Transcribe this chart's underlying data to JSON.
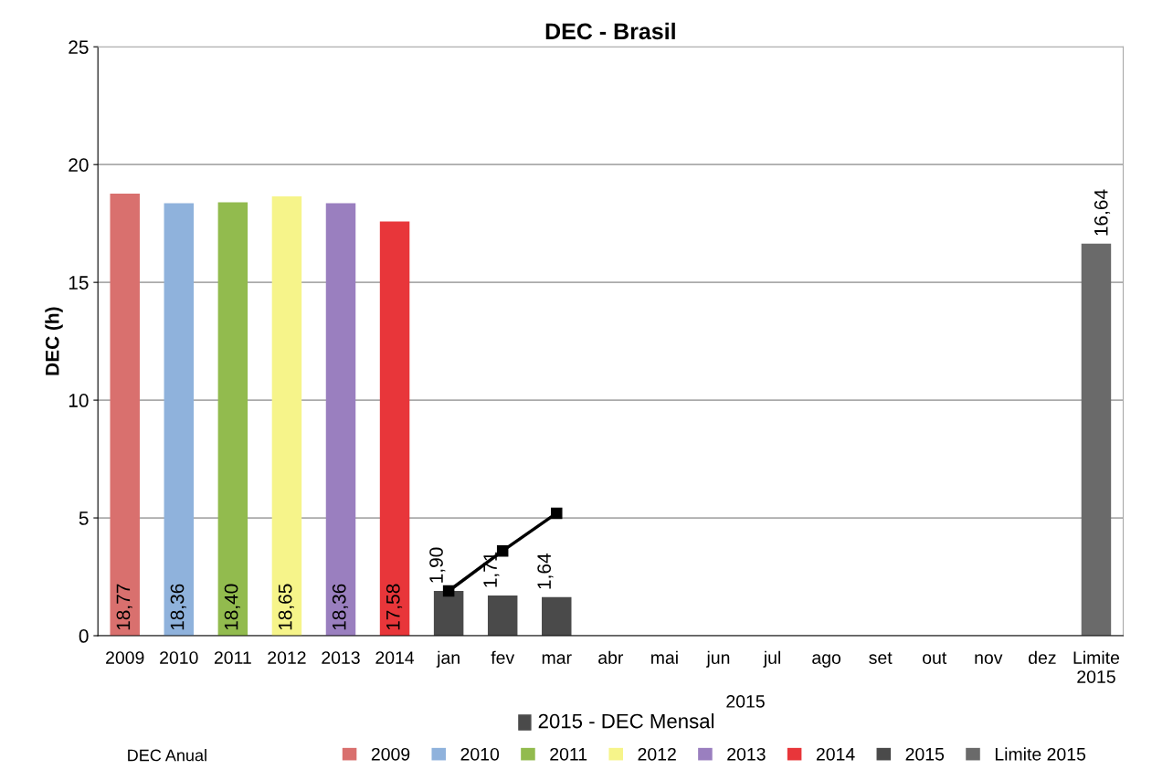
{
  "chart_data": {
    "type": "bar",
    "title": "DEC - Brasil",
    "ylabel": "DEC (h)",
    "categories": [
      "2009",
      "2010",
      "2011",
      "2012",
      "2013",
      "2014",
      "jan",
      "fev",
      "mar",
      "abr",
      "mai",
      "jun",
      "jul",
      "ago",
      "set",
      "out",
      "nov",
      "dez",
      "Limite 2015"
    ],
    "series": [
      {
        "name": "2009",
        "color": "#d9706e",
        "values": [
          18.77,
          null,
          null,
          null,
          null,
          null,
          null,
          null,
          null,
          null,
          null,
          null,
          null,
          null,
          null,
          null,
          null,
          null,
          null
        ],
        "value_labels": [
          "18,77",
          null,
          null,
          null,
          null,
          null,
          null,
          null,
          null,
          null,
          null,
          null,
          null,
          null,
          null,
          null,
          null,
          null,
          null
        ]
      },
      {
        "name": "2010",
        "color": "#8fb2dc",
        "values": [
          null,
          18.36,
          null,
          null,
          null,
          null,
          null,
          null,
          null,
          null,
          null,
          null,
          null,
          null,
          null,
          null,
          null,
          null,
          null
        ],
        "value_labels": [
          null,
          "18,36",
          null,
          null,
          null,
          null,
          null,
          null,
          null,
          null,
          null,
          null,
          null,
          null,
          null,
          null,
          null,
          null,
          null
        ]
      },
      {
        "name": "2011",
        "color": "#92bb4e",
        "values": [
          null,
          null,
          18.4,
          null,
          null,
          null,
          null,
          null,
          null,
          null,
          null,
          null,
          null,
          null,
          null,
          null,
          null,
          null,
          null
        ],
        "value_labels": [
          null,
          null,
          "18,40",
          null,
          null,
          null,
          null,
          null,
          null,
          null,
          null,
          null,
          null,
          null,
          null,
          null,
          null,
          null,
          null
        ]
      },
      {
        "name": "2012",
        "color": "#f6f48a",
        "values": [
          null,
          null,
          null,
          18.65,
          null,
          null,
          null,
          null,
          null,
          null,
          null,
          null,
          null,
          null,
          null,
          null,
          null,
          null,
          null
        ],
        "value_labels": [
          null,
          null,
          null,
          "18,65",
          null,
          null,
          null,
          null,
          null,
          null,
          null,
          null,
          null,
          null,
          null,
          null,
          null,
          null,
          null
        ]
      },
      {
        "name": "2013",
        "color": "#9a7fbf",
        "values": [
          null,
          null,
          null,
          null,
          18.36,
          null,
          null,
          null,
          null,
          null,
          null,
          null,
          null,
          null,
          null,
          null,
          null,
          null,
          null
        ],
        "value_labels": [
          null,
          null,
          null,
          null,
          "18,36",
          null,
          null,
          null,
          null,
          null,
          null,
          null,
          null,
          null,
          null,
          null,
          null,
          null,
          null
        ]
      },
      {
        "name": "2014",
        "color": "#e8363a",
        "values": [
          null,
          null,
          null,
          null,
          null,
          17.58,
          null,
          null,
          null,
          null,
          null,
          null,
          null,
          null,
          null,
          null,
          null,
          null,
          null
        ],
        "value_labels": [
          null,
          null,
          null,
          null,
          null,
          "17,58",
          null,
          null,
          null,
          null,
          null,
          null,
          null,
          null,
          null,
          null,
          null,
          null,
          null
        ]
      },
      {
        "name": "2015",
        "color": "#4a4a4a",
        "values": [
          null,
          null,
          null,
          null,
          null,
          null,
          1.9,
          1.71,
          1.64,
          null,
          null,
          null,
          null,
          null,
          null,
          null,
          null,
          null,
          null
        ],
        "value_labels": [
          null,
          null,
          null,
          null,
          null,
          null,
          "1,90",
          "1,71",
          "1,64",
          null,
          null,
          null,
          null,
          null,
          null,
          null,
          null,
          null,
          null
        ]
      },
      {
        "name": "Limite 2015",
        "color": "#6a6a6a",
        "values": [
          null,
          null,
          null,
          null,
          null,
          null,
          null,
          null,
          null,
          null,
          null,
          null,
          null,
          null,
          null,
          null,
          null,
          null,
          16.64
        ],
        "value_labels": [
          null,
          null,
          null,
          null,
          null,
          null,
          null,
          null,
          null,
          null,
          null,
          null,
          null,
          null,
          null,
          null,
          null,
          null,
          "16,64"
        ]
      },
      {
        "type": "line",
        "color": "#000000",
        "marker": "square",
        "values": [
          null,
          null,
          null,
          null,
          null,
          null,
          1.9,
          3.6,
          5.2,
          null,
          null,
          null,
          null,
          null,
          null,
          null,
          null,
          null,
          null
        ]
      }
    ],
    "ylim": [
      0,
      25
    ],
    "yticks": [
      0,
      5,
      10,
      15,
      20,
      25
    ],
    "grid": "y",
    "legend": "bottom",
    "annotations": [
      "2015",
      "2015 - DEC Mensal",
      "DEC Anual"
    ]
  }
}
